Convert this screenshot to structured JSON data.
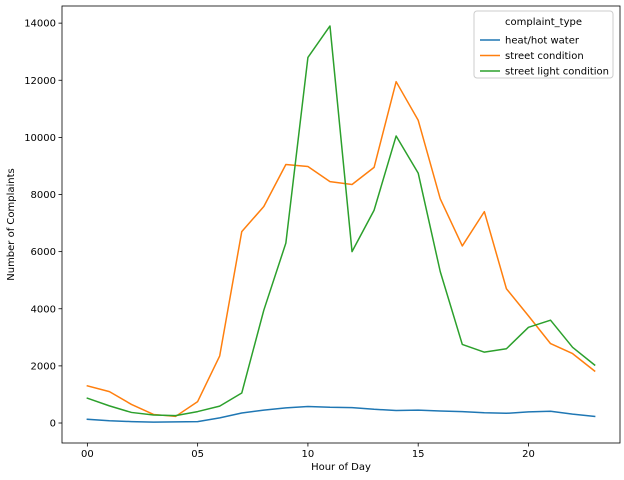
{
  "chart_data": {
    "type": "line",
    "xlabel": "Hour of Day",
    "ylabel": "Number of Complaints",
    "x": [
      0,
      1,
      2,
      3,
      4,
      5,
      6,
      7,
      8,
      9,
      10,
      11,
      12,
      13,
      14,
      15,
      16,
      17,
      18,
      19,
      20,
      21,
      22,
      23
    ],
    "xlim": [
      -1.15,
      24.15
    ],
    "ylim": [
      -700,
      14600
    ],
    "x_ticks": [
      0,
      5,
      10,
      15,
      20
    ],
    "x_tick_labels": [
      "00",
      "05",
      "10",
      "15",
      "20"
    ],
    "y_ticks": [
      0,
      2000,
      4000,
      6000,
      8000,
      10000,
      12000,
      14000
    ],
    "y_tick_labels": [
      "0",
      "2000",
      "4000",
      "6000",
      "8000",
      "10000",
      "12000",
      "14000"
    ],
    "grid": false,
    "legend": {
      "title": "complaint_type",
      "placement": "top-right"
    },
    "series": [
      {
        "name": "heat/hot water",
        "color": "#1f77b4",
        "values": [
          130,
          80,
          50,
          30,
          40,
          50,
          180,
          350,
          450,
          530,
          580,
          550,
          540,
          480,
          440,
          450,
          420,
          400,
          360,
          340,
          390,
          410,
          310,
          230
        ]
      },
      {
        "name": "street condition",
        "color": "#ff7f0e",
        "values": [
          1300,
          1100,
          650,
          300,
          230,
          750,
          2350,
          6700,
          7580,
          9050,
          8980,
          8450,
          8350,
          8950,
          11950,
          10600,
          7850,
          6200,
          7400,
          4700,
          3750,
          2780,
          2430,
          1820
        ]
      },
      {
        "name": "street light condition",
        "color": "#2ca02c",
        "values": [
          870,
          600,
          370,
          280,
          260,
          400,
          590,
          1050,
          3950,
          6300,
          12800,
          13900,
          6000,
          7450,
          10050,
          8750,
          5300,
          2750,
          2480,
          2600,
          3350,
          3600,
          2650,
          2030
        ]
      }
    ]
  }
}
